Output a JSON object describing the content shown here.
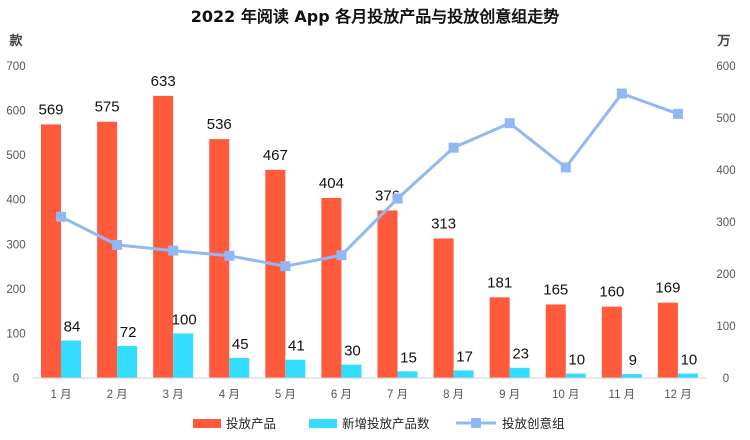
{
  "chart_data": {
    "type": "bar",
    "title": "2022 年阅读 App 各月投放产品与投放创意组走势",
    "categories": [
      "1 月",
      "2 月",
      "3 月",
      "4 月",
      "5 月",
      "6 月",
      "7 月",
      "8 月",
      "9 月",
      "10 月",
      "11 月",
      "12 月"
    ],
    "left_axis": {
      "unit": "款",
      "min": 0,
      "max": 700,
      "ticks": [
        0,
        100,
        200,
        300,
        400,
        500,
        600,
        700
      ]
    },
    "right_axis": {
      "unit": "万",
      "min": 0,
      "max": 600,
      "ticks": [
        0,
        100,
        200,
        300,
        400,
        500,
        600
      ]
    },
    "series": [
      {
        "name": "投放产品",
        "type": "bar",
        "axis": "left",
        "color": "#FF5A3C",
        "values": [
          569,
          575,
          633,
          536,
          467,
          404,
          376,
          313,
          181,
          165,
          160,
          169
        ]
      },
      {
        "name": "新增投放产品数",
        "type": "bar",
        "axis": "left",
        "color": "#33DDFF",
        "values": [
          84,
          72,
          100,
          45,
          41,
          30,
          15,
          17,
          23,
          10,
          9,
          10
        ]
      },
      {
        "name": "投放创意组",
        "type": "line",
        "axis": "right",
        "color": "#8FB8F5",
        "values": [
          310,
          256,
          245,
          235,
          215,
          236,
          345,
          443,
          490,
          405,
          547,
          508
        ]
      }
    ],
    "legend_position": "bottom"
  }
}
